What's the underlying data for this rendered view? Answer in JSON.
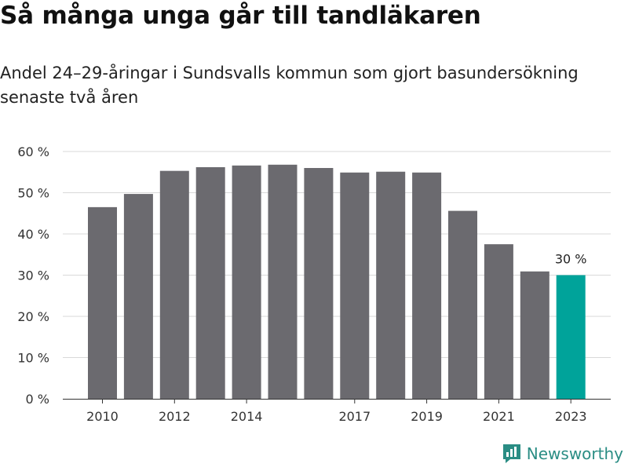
{
  "title": "Så många unga går till tandläkaren",
  "subtitle": "Andel 24–29-åringar i Sundsvalls kommun som gjort basundersökning senaste två åren",
  "brand": {
    "name": "Newsworthy",
    "icon": "newsworthy-logo-icon"
  },
  "colors": {
    "bar": "#6b6a6f",
    "highlight": "#00a39a",
    "grid": "#d9d9d9",
    "brand": "#2a8d84"
  },
  "chart_data": {
    "type": "bar",
    "title": "Så många unga går till tandläkaren",
    "subtitle": "Andel 24–29-åringar i Sundsvalls kommun som gjort basundersökning senaste två åren",
    "categories": [
      "2010",
      "2011",
      "2012",
      "2013",
      "2014",
      "2015",
      "2016",
      "2017",
      "2018",
      "2019",
      "2020",
      "2021",
      "2022",
      "2023"
    ],
    "values": [
      46.5,
      49.7,
      55.3,
      56.2,
      56.6,
      56.8,
      56.0,
      54.9,
      55.1,
      54.9,
      45.6,
      37.5,
      30.9,
      30.0
    ],
    "highlight_index": 13,
    "highlight_label": "30 %",
    "ylim": [
      0,
      60
    ],
    "yticks": [
      "0 %",
      "10 %",
      "20 %",
      "30 %",
      "40 %",
      "50 %",
      "60 %"
    ],
    "ytick_values": [
      0,
      10,
      20,
      30,
      40,
      50,
      60
    ],
    "xticks": [
      "2010",
      "2012",
      "2014",
      "2017",
      "2019",
      "2021",
      "2023"
    ],
    "grid": true,
    "legend": "none"
  }
}
